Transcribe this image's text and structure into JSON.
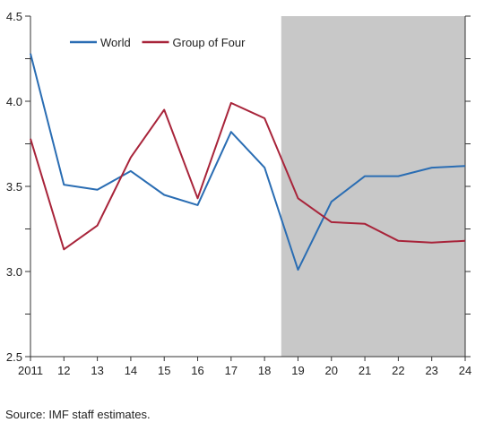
{
  "chart_data": {
    "type": "line",
    "categories": [
      "2011",
      "12",
      "13",
      "14",
      "15",
      "16",
      "17",
      "18",
      "19",
      "20",
      "21",
      "22",
      "23",
      "24"
    ],
    "series": [
      {
        "name": "World",
        "color": "#2a6db3",
        "values": [
          4.28,
          3.51,
          3.48,
          3.59,
          3.45,
          3.39,
          3.82,
          3.61,
          3.01,
          3.41,
          3.56,
          3.56,
          3.61,
          3.62
        ]
      },
      {
        "name": "Group of Four",
        "color": "#a8243a",
        "values": [
          3.78,
          3.13,
          3.27,
          3.67,
          3.95,
          3.43,
          3.99,
          3.9,
          3.43,
          3.29,
          3.28,
          3.18,
          3.17,
          3.18
        ]
      }
    ],
    "ylim": [
      2.5,
      4.5
    ],
    "yticks_labeled": [
      "2.5",
      "3.0",
      "3.5",
      "4.0",
      "4.5"
    ],
    "projection_shading": {
      "from_category": "19",
      "to_category": "24",
      "color": "#c8c8c8"
    },
    "legend_placement": "top-left",
    "grid": false
  },
  "source_note": "Source: IMF staff estimates."
}
